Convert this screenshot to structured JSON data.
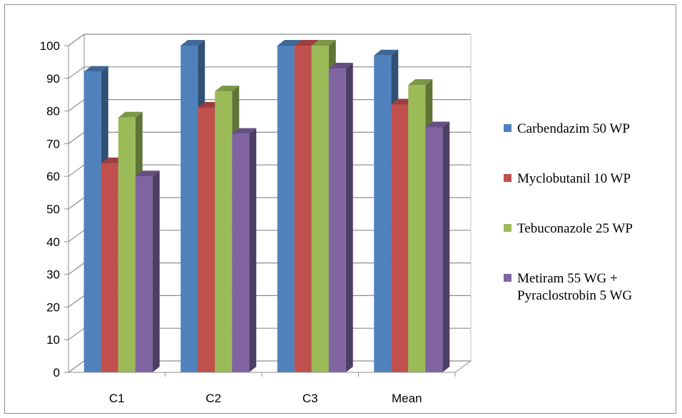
{
  "chart_data": {
    "type": "bar",
    "categories": [
      "C1",
      "C2",
      "C3",
      "Mean"
    ],
    "series": [
      {
        "name": "Carbendazim 50 WP",
        "values": [
          92,
          100,
          100,
          97
        ],
        "color": "#4f81bd"
      },
      {
        "name": "Myclobutanil 10 WP",
        "values": [
          64,
          81,
          100,
          82
        ],
        "color": "#c0504d"
      },
      {
        "name": "Tebuconazole 25 WP",
        "values": [
          78,
          86,
          100,
          88
        ],
        "color": "#9bbb59"
      },
      {
        "name": "Metiram 55 WG + Pyraclostrobin 5 WG",
        "name_lines": [
          "Metiram 55 WG +",
          "Pyraclostrobin 5 WG"
        ],
        "values": [
          60,
          73,
          93,
          75
        ],
        "color": "#8064a2"
      }
    ],
    "yticks": [
      0,
      10,
      20,
      30,
      40,
      50,
      60,
      70,
      80,
      90,
      100
    ],
    "ylim": [
      0,
      100
    ],
    "grid": true,
    "legend": "right",
    "style": "3d-clustered-column"
  }
}
